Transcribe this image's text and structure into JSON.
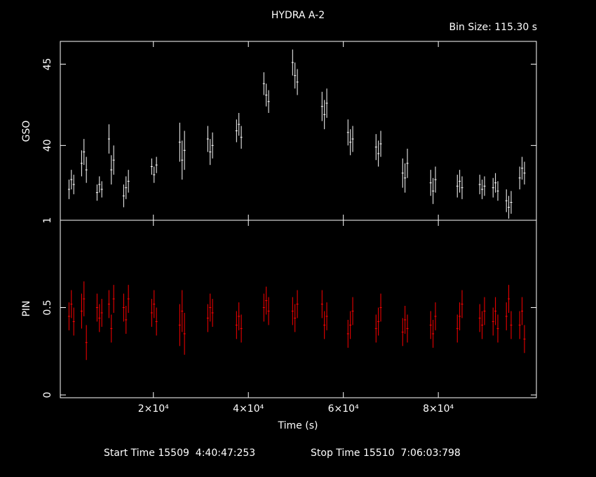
{
  "chart_data": [
    {
      "type": "errorbar",
      "title": "HYDRA A-2",
      "subtitle": "Bin Size: 115.30 s",
      "ylabel": "GSO",
      "color": "#ffffff",
      "xlim": [
        400,
        100650
      ],
      "ylim": [
        35.4,
        46.4
      ],
      "yticks": [
        40,
        45
      ],
      "x": [
        2231,
        2731,
        3231,
        4887,
        5387,
        5887,
        8135,
        8635,
        9135,
        10644,
        11144,
        11644,
        13743,
        14243,
        14743,
        19647,
        20147,
        20647,
        25551,
        26051,
        26551,
        31455,
        31955,
        32455,
        37507,
        38007,
        38507,
        43263,
        43763,
        44263,
        49315,
        49815,
        50315,
        55514,
        56014,
        56514,
        60975,
        61475,
        61975,
        66879,
        67379,
        67879,
        72488,
        72988,
        73488,
        78392,
        78892,
        79392,
        84001,
        84501,
        85001,
        88724,
        89224,
        89724,
        91529,
        92029,
        92529,
        94333,
        94833,
        95333,
        97138,
        97638,
        98138
      ],
      "values": [
        37.3,
        37.9,
        37.6,
        38.9,
        39.6,
        38.5,
        37.1,
        37.6,
        37.3,
        40.4,
        38.5,
        39.1,
        36.9,
        37.4,
        37.8,
        38.7,
        38.2,
        38.8,
        40.2,
        39.1,
        39.7,
        40.4,
        39.6,
        40.0,
        40.9,
        41.3,
        40.5,
        43.8,
        43.1,
        42.7,
        45.1,
        44.3,
        43.9,
        42.4,
        41.9,
        42.6,
        40.8,
        40.2,
        40.4,
        39.9,
        39.5,
        40.1,
        38.3,
        38.0,
        38.9,
        37.7,
        37.2,
        37.9,
        37.5,
        37.8,
        37.4,
        37.6,
        37.3,
        37.5,
        37.4,
        37.7,
        37.2,
        36.6,
        36.2,
        36.5,
        38.0,
        38.6,
        38.3
      ],
      "errors": [
        0.6,
        0.6,
        0.6,
        0.8,
        0.8,
        0.8,
        0.5,
        0.5,
        0.5,
        0.9,
        0.9,
        0.9,
        0.7,
        0.7,
        0.7,
        0.5,
        0.5,
        0.5,
        1.2,
        1.2,
        1.2,
        0.8,
        0.8,
        0.8,
        0.7,
        0.7,
        0.7,
        0.7,
        0.7,
        0.7,
        0.8,
        0.8,
        0.8,
        0.9,
        0.9,
        0.9,
        0.8,
        0.8,
        0.8,
        0.8,
        0.8,
        0.8,
        0.9,
        0.9,
        0.9,
        0.8,
        0.8,
        0.8,
        0.7,
        0.7,
        0.7,
        0.6,
        0.6,
        0.6,
        0.6,
        0.6,
        0.6,
        0.7,
        0.7,
        0.7,
        0.7,
        0.7,
        0.7
      ]
    },
    {
      "type": "errorbar",
      "ylabel": "PIN",
      "xlabel": "Time (s)",
      "color": "#ff0000",
      "xlim": [
        400,
        100650
      ],
      "ylim": [
        -0.016,
        1.0
      ],
      "yticks": [
        0,
        0.5,
        1
      ],
      "xticks": [
        {
          "value": 20000,
          "label": "2×10⁴"
        },
        {
          "value": 40000,
          "label": "4×10⁴"
        },
        {
          "value": 60000,
          "label": "6×10⁴"
        },
        {
          "value": 80000,
          "label": "8×10⁴"
        }
      ],
      "x": [
        2231,
        2731,
        3231,
        4887,
        5387,
        5887,
        8135,
        8635,
        9135,
        10644,
        11144,
        11644,
        13743,
        14243,
        14743,
        19647,
        20147,
        20647,
        25551,
        26051,
        26551,
        31455,
        31955,
        32455,
        37507,
        38007,
        38507,
        43263,
        43763,
        44263,
        49315,
        49815,
        50315,
        55514,
        56014,
        56514,
        60975,
        61475,
        61975,
        66879,
        67379,
        67879,
        72488,
        72988,
        73488,
        78392,
        78892,
        79392,
        84001,
        84501,
        85001,
        88724,
        89224,
        89724,
        91529,
        92029,
        92529,
        94333,
        94833,
        95333,
        97138,
        97638,
        98138
      ],
      "values": [
        0.45,
        0.52,
        0.42,
        0.48,
        0.55,
        0.3,
        0.5,
        0.44,
        0.47,
        0.52,
        0.38,
        0.55,
        0.5,
        0.43,
        0.55,
        0.47,
        0.52,
        0.42,
        0.4,
        0.48,
        0.35,
        0.44,
        0.5,
        0.47,
        0.4,
        0.45,
        0.38,
        0.5,
        0.54,
        0.48,
        0.48,
        0.44,
        0.52,
        0.52,
        0.4,
        0.45,
        0.35,
        0.4,
        0.48,
        0.38,
        0.42,
        0.5,
        0.36,
        0.43,
        0.38,
        0.4,
        0.35,
        0.45,
        0.38,
        0.45,
        0.52,
        0.44,
        0.4,
        0.48,
        0.42,
        0.48,
        0.38,
        0.45,
        0.55,
        0.4,
        0.4,
        0.48,
        0.32
      ],
      "errors": [
        0.08,
        0.08,
        0.08,
        0.1,
        0.1,
        0.1,
        0.08,
        0.08,
        0.08,
        0.08,
        0.08,
        0.08,
        0.08,
        0.08,
        0.08,
        0.08,
        0.08,
        0.08,
        0.12,
        0.12,
        0.12,
        0.08,
        0.08,
        0.08,
        0.08,
        0.08,
        0.08,
        0.08,
        0.08,
        0.08,
        0.08,
        0.08,
        0.08,
        0.08,
        0.08,
        0.08,
        0.08,
        0.08,
        0.08,
        0.08,
        0.08,
        0.08,
        0.08,
        0.08,
        0.08,
        0.08,
        0.08,
        0.08,
        0.08,
        0.08,
        0.08,
        0.08,
        0.08,
        0.08,
        0.08,
        0.08,
        0.08,
        0.08,
        0.08,
        0.08,
        0.08,
        0.08,
        0.08
      ]
    }
  ],
  "footer": {
    "start": "Start Time 15509  4:40:47:253",
    "stop": "Stop Time 15510  7:06:03:798"
  }
}
